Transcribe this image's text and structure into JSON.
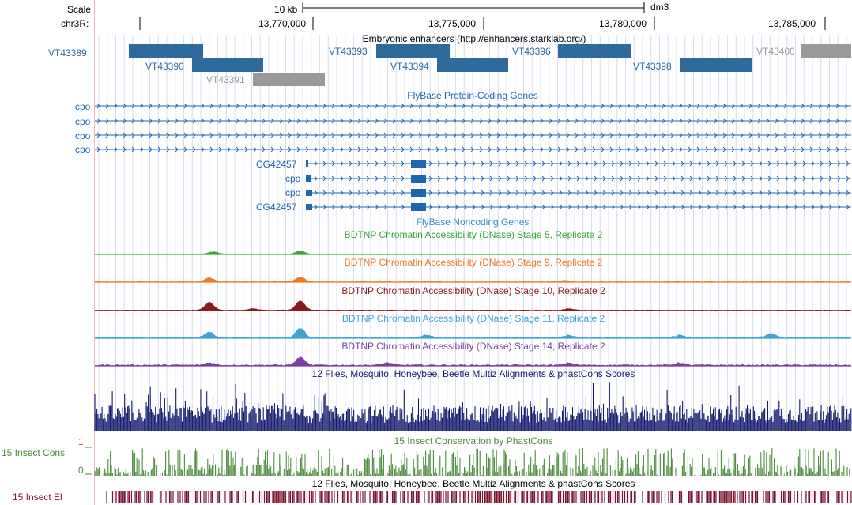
{
  "ruler": {
    "scale_label": "Scale",
    "chrom_label": "chr3R:",
    "scale_bar_label": "10 kb",
    "assembly": "dm3",
    "ticks": [
      "13,770,000",
      "13,775,000",
      "13,780,000",
      "13,785,000"
    ]
  },
  "enhancers": {
    "title": "Embryonic enhancers (http://enhancers.starklab.org/)",
    "items": [
      {
        "name": "VT43389",
        "color": "#2e6a9c"
      },
      {
        "name": "VT43390",
        "color": "#2e6a9c"
      },
      {
        "name": "VT43391",
        "color": "#999999"
      },
      {
        "name": "VT43393",
        "color": "#2e6a9c"
      },
      {
        "name": "VT43394",
        "color": "#2e6a9c"
      },
      {
        "name": "VT43396",
        "color": "#2e6a9c"
      },
      {
        "name": "VT43398",
        "color": "#2e6a9c"
      },
      {
        "name": "VT43400",
        "color": "#999999"
      }
    ]
  },
  "genes": {
    "title": "FlyBase Protein-Coding Genes",
    "long_rows": [
      "cpo",
      "cpo",
      "cpo",
      "cpo"
    ],
    "short_rows": [
      "CG42457",
      "cpo",
      "cpo",
      "CG42457"
    ],
    "color": "#1f66b0"
  },
  "noncoding": {
    "title": "FlyBase Noncoding Genes",
    "color": "#3a8fd0"
  },
  "dnase": [
    {
      "title": "BDTNP Chromatin Accessibility (DNase) Stage 5, Replicate 2",
      "color": "#3aa63a"
    },
    {
      "title": "BDTNP Chromatin Accessibility (DNase) Stage 9, Replicate 2",
      "color": "#f07a22"
    },
    {
      "title": "BDTNP Chromatin Accessibility (DNase) Stage 10, Replicate 2",
      "color": "#8b1a1a"
    },
    {
      "title": "BDTNP Chromatin Accessibility (DNase) Stage 11, Replicate 2",
      "color": "#3fa3d4"
    },
    {
      "title": "BDTNP Chromatin Accessibility (DNase) Stage 14, Replicate 2",
      "color": "#7b3fa6"
    }
  ],
  "multiz": {
    "title": "12 Flies, Mosquito, Honeybee, Beetle Multiz Alignments & phastCons Scores",
    "color": "#141c6e"
  },
  "phastcons": {
    "title": "15 Insect Conservation by PhastCons",
    "side_label": "15 Insect Cons",
    "y_max": "1",
    "y_min": "0",
    "color": "#4b8a3c"
  },
  "elements": {
    "title": "12 Flies, Mosquito, Honeybee, Beetle Multiz Alignments & phastCons Scores",
    "side_label": "15 Insect El",
    "color": "#7a1530"
  }
}
